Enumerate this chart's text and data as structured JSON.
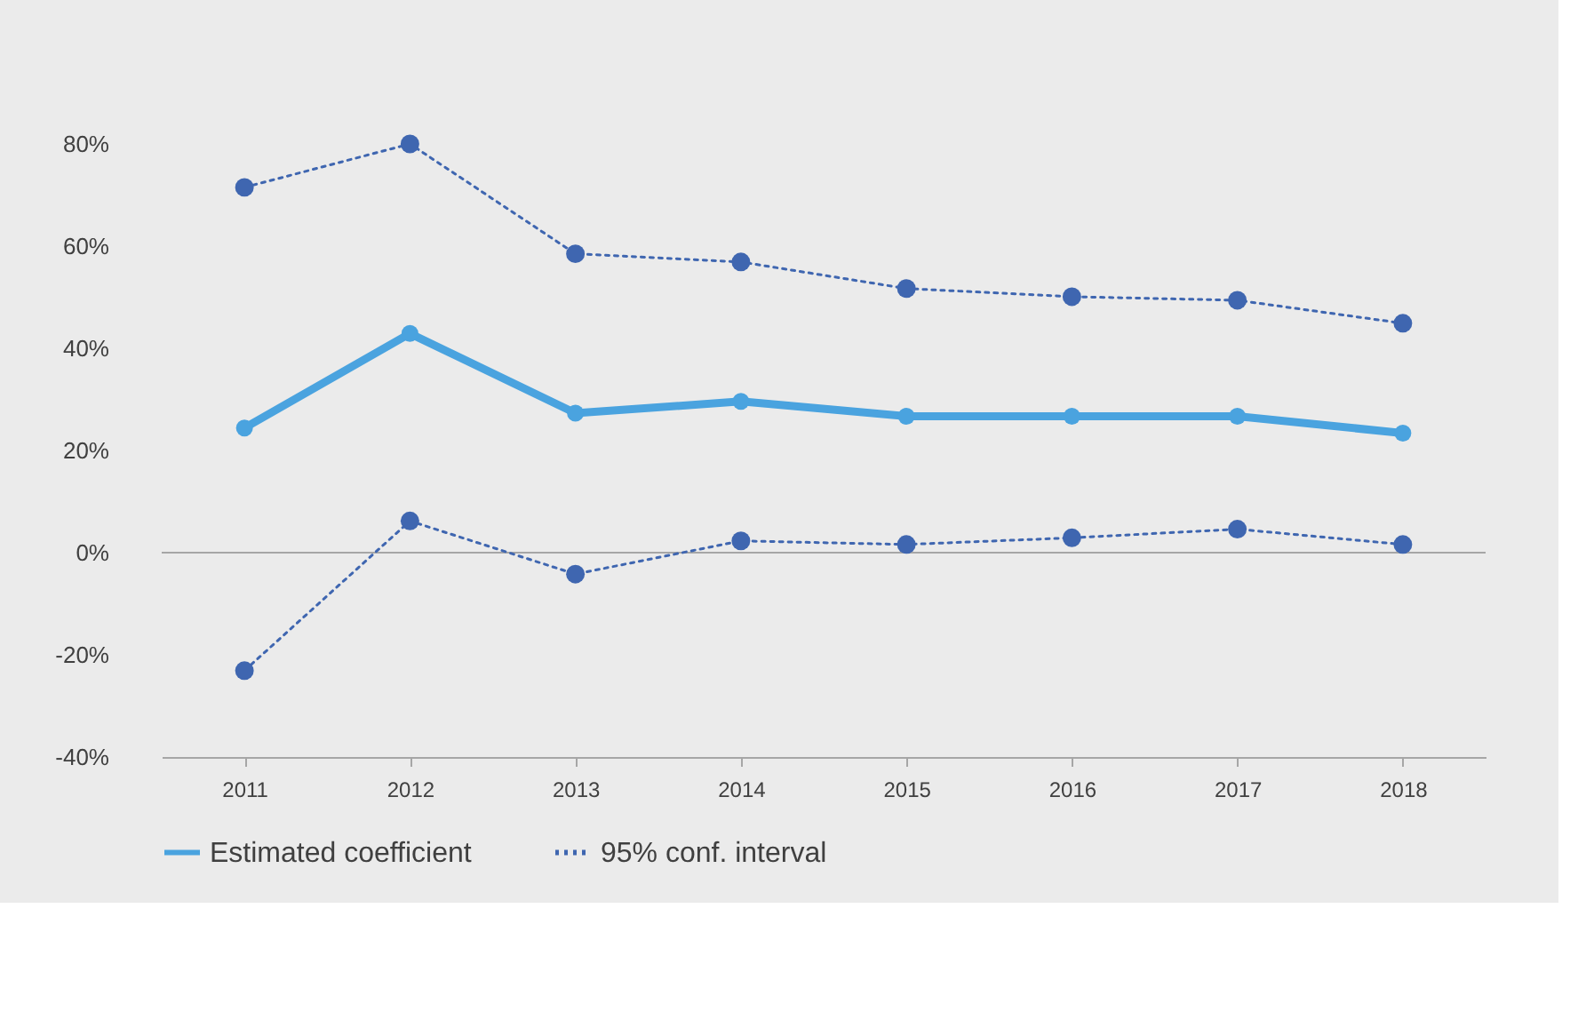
{
  "chart_data": {
    "type": "line",
    "categories": [
      "2011",
      "2012",
      "2013",
      "2014",
      "2015",
      "2016",
      "2017",
      "2018"
    ],
    "series": [
      {
        "name": "Estimated coefficient",
        "color": "#4aa3df",
        "line_style": "solid",
        "marker": "circle",
        "values": [
          24.4,
          42.9,
          27.3,
          29.6,
          26.7,
          26.7,
          26.7,
          23.4
        ]
      },
      {
        "name": "95% conf. interval",
        "color": "#3f66b0",
        "line_style": "dotted",
        "marker": "circle",
        "values": [
          71.5,
          80,
          58.5,
          56.9,
          51.7,
          50.1,
          49.4,
          44.9
        ]
      },
      {
        "color": "#3f66b0",
        "line_style": "dotted",
        "marker": "circle",
        "values": [
          -23.1,
          6.2,
          -4.2,
          2.3,
          1.6,
          2.9,
          4.6,
          1.6
        ]
      }
    ],
    "ylim": [
      -40,
      80
    ],
    "yticks": [
      {
        "value": -40,
        "label": "-40%"
      },
      {
        "value": -20,
        "label": "-20%"
      },
      {
        "value": 0,
        "label": "0%"
      },
      {
        "value": 20,
        "label": "20%"
      },
      {
        "value": 40,
        "label": "40%"
      },
      {
        "value": 60,
        "label": "60%"
      },
      {
        "value": 80,
        "label": "80%"
      }
    ],
    "ref_lines": [
      {
        "axis": "y",
        "value": 0,
        "color": "#a6a6a6"
      }
    ],
    "grid": false,
    "legend": "bottom"
  }
}
